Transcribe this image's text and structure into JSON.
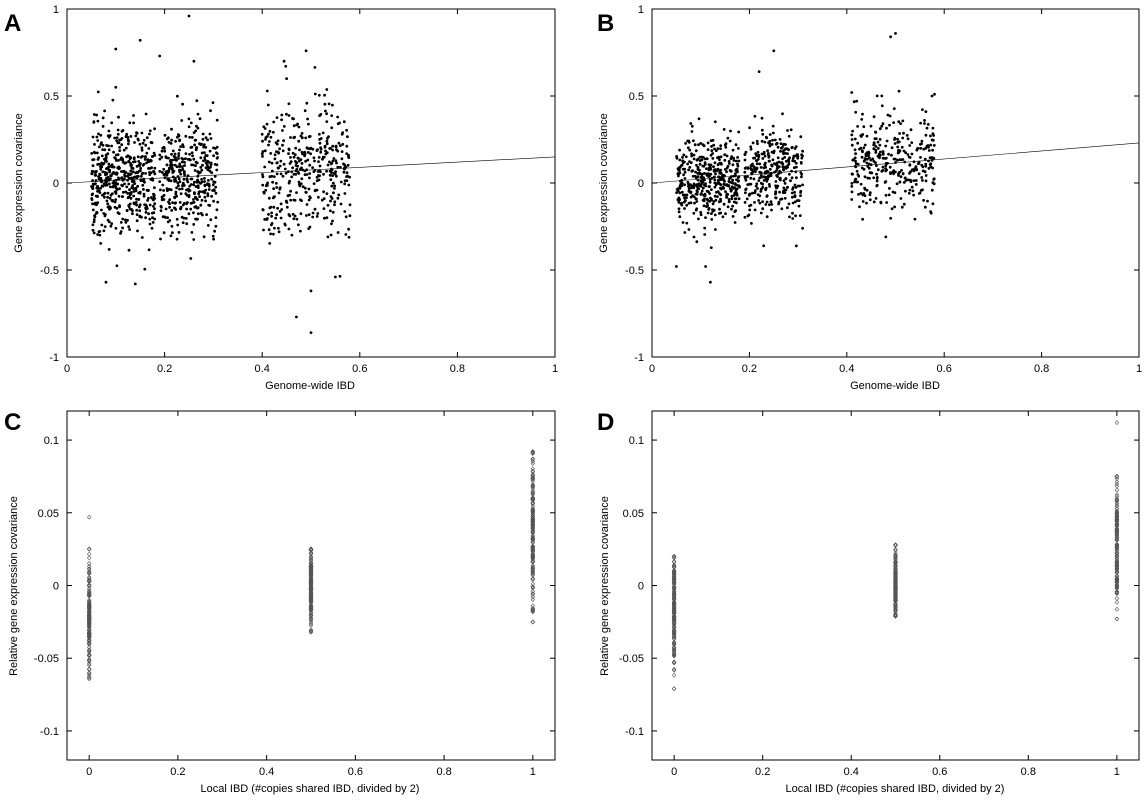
{
  "figure_panels": [
    "A",
    "B",
    "C",
    "D"
  ],
  "chart_data": [
    {
      "panel": "A",
      "type": "scatter",
      "xlabel": "Genome-wide IBD",
      "ylabel": "Gene expression covariance",
      "xlim": [
        0,
        1
      ],
      "ylim": [
        -1,
        1
      ],
      "xticks": [
        "0",
        "0.2",
        "0.4",
        "0.6",
        "0.8",
        "1"
      ],
      "yticks": [
        "1",
        "0.5",
        "0",
        "-0.5",
        "-1"
      ],
      "grid": false,
      "marker": "filled-dot",
      "points_shown": 1300,
      "clusters": [
        {
          "x_range": [
            0.05,
            0.18
          ],
          "y_mean": 0.03,
          "y_sd": 0.15,
          "n": 520
        },
        {
          "x_range": [
            0.19,
            0.31
          ],
          "y_mean": 0.03,
          "y_sd": 0.16,
          "n": 380
        },
        {
          "x_range": [
            0.4,
            0.58
          ],
          "y_mean": 0.08,
          "y_sd": 0.2,
          "n": 400
        }
      ],
      "outliers": [
        {
          "x": 0.1,
          "y": 0.77
        },
        {
          "x": 0.15,
          "y": 0.82
        },
        {
          "x": 0.25,
          "y": 0.96
        },
        {
          "x": 0.26,
          "y": 0.7
        },
        {
          "x": 0.19,
          "y": 0.73
        },
        {
          "x": 0.49,
          "y": 0.76
        },
        {
          "x": 0.14,
          "y": -0.58
        },
        {
          "x": 0.08,
          "y": -0.57
        },
        {
          "x": 0.5,
          "y": -0.86
        },
        {
          "x": 0.47,
          "y": -0.77
        },
        {
          "x": 0.5,
          "y": -0.62
        },
        {
          "x": 0.55,
          "y": -0.54
        },
        {
          "x": 0.1,
          "y": 0.55
        },
        {
          "x": 0.45,
          "y": 0.6
        }
      ],
      "trend_line": {
        "x": [
          0,
          1
        ],
        "y": [
          0,
          0.15
        ]
      }
    },
    {
      "panel": "B",
      "type": "scatter",
      "xlabel": "Genome-wide IBD",
      "ylabel": "Gene expression covariance",
      "xlim": [
        0,
        1
      ],
      "ylim": [
        -1,
        1
      ],
      "xticks": [
        "0",
        "0.2",
        "0.4",
        "0.6",
        "0.8",
        "1"
      ],
      "yticks": [
        "1",
        "0.5",
        "0",
        "-0.5",
        "-1"
      ],
      "grid": false,
      "marker": "filled-dot",
      "points_shown": 1100,
      "clusters": [
        {
          "x_range": [
            0.05,
            0.18
          ],
          "y_mean": 0.02,
          "y_sd": 0.13,
          "n": 430
        },
        {
          "x_range": [
            0.19,
            0.31
          ],
          "y_mean": 0.05,
          "y_sd": 0.13,
          "n": 330
        },
        {
          "x_range": [
            0.41,
            0.58
          ],
          "y_mean": 0.12,
          "y_sd": 0.14,
          "n": 340
        }
      ],
      "outliers": [
        {
          "x": 0.25,
          "y": 0.76
        },
        {
          "x": 0.22,
          "y": 0.64
        },
        {
          "x": 0.49,
          "y": 0.84
        },
        {
          "x": 0.5,
          "y": 0.86
        },
        {
          "x": 0.12,
          "y": -0.57
        },
        {
          "x": 0.11,
          "y": -0.48
        },
        {
          "x": 0.05,
          "y": -0.48
        },
        {
          "x": 0.48,
          "y": -0.31
        },
        {
          "x": 0.41,
          "y": 0.52
        },
        {
          "x": 0.58,
          "y": 0.51
        }
      ],
      "trend_line": {
        "x": [
          0,
          1
        ],
        "y": [
          0,
          0.23
        ]
      }
    },
    {
      "panel": "C",
      "type": "scatter",
      "xlabel": "Local IBD (#copies shared IBD, divided by 2)",
      "ylabel": "Relative gene expression covariance",
      "xlim": [
        -0.05,
        1.05
      ],
      "ylim": [
        -0.12,
        0.12
      ],
      "xticks": [
        "0",
        "0.2",
        "0.4",
        "0.6",
        "0.8",
        "1"
      ],
      "yticks": [
        "0.1",
        "0.05",
        "0",
        "-0.05",
        "-0.1"
      ],
      "grid": false,
      "marker": "open-diamond",
      "columns": [
        {
          "x": 0,
          "y_min": -0.064,
          "y_max": 0.025,
          "y_top_outlier": 0.047,
          "y_center": -0.02,
          "n": 160
        },
        {
          "x": 0.5,
          "y_min": -0.032,
          "y_max": 0.025,
          "y_center": 0.0,
          "n": 180
        },
        {
          "x": 1,
          "y_min": -0.025,
          "y_max": 0.092,
          "y_center": 0.035,
          "n": 170
        }
      ]
    },
    {
      "panel": "D",
      "type": "scatter",
      "xlabel": "Local IBD (#copies shared IBD, divided by 2)",
      "ylabel": "Relative gene expression covariance",
      "xlim": [
        -0.05,
        1.05
      ],
      "ylim": [
        -0.12,
        0.12
      ],
      "xticks": [
        "0",
        "0.2",
        "0.4",
        "0.6",
        "0.8",
        "1"
      ],
      "yticks": [
        "0.1",
        "0.05",
        "0",
        "-0.05",
        "-0.1"
      ],
      "grid": false,
      "marker": "open-diamond",
      "columns": [
        {
          "x": 0,
          "y_min": -0.071,
          "y_max": 0.02,
          "y_center": -0.02,
          "n": 160
        },
        {
          "x": 0.5,
          "y_min": -0.021,
          "y_max": 0.028,
          "y_center": 0.0,
          "n": 180
        },
        {
          "x": 1,
          "y_min": -0.023,
          "y_max": 0.075,
          "y_top_outlier": 0.112,
          "y_center": 0.03,
          "n": 170
        }
      ]
    }
  ]
}
